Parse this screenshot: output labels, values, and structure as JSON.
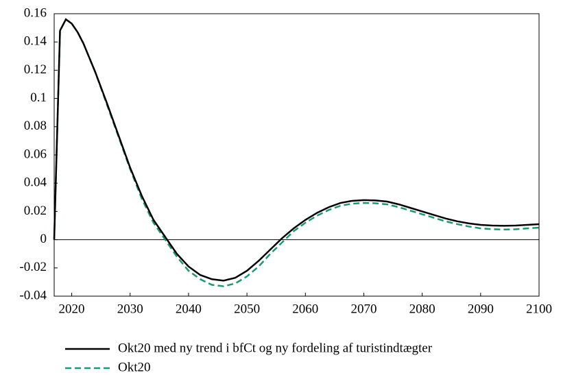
{
  "chart_data": {
    "type": "line",
    "x": [
      2017,
      2018,
      2019,
      2020,
      2021,
      2022,
      2024,
      2026,
      2028,
      2030,
      2032,
      2034,
      2036,
      2038,
      2040,
      2042,
      2044,
      2046,
      2048,
      2050,
      2052,
      2054,
      2056,
      2058,
      2060,
      2062,
      2064,
      2066,
      2068,
      2070,
      2072,
      2074,
      2076,
      2078,
      2080,
      2082,
      2084,
      2086,
      2088,
      2090,
      2092,
      2094,
      2096,
      2098,
      2100
    ],
    "series": [
      {
        "name": "Okt20 med ny trend i bfCt og ny fordeling af turistindtægter",
        "color": "#000000",
        "dash": false,
        "values": [
          0,
          0.148,
          0.156,
          0.153,
          0.147,
          0.139,
          0.119,
          0.097,
          0.074,
          0.051,
          0.031,
          0.014,
          0.002,
          -0.01,
          -0.019,
          -0.025,
          -0.028,
          -0.029,
          -0.027,
          -0.022,
          -0.015,
          -0.007,
          0.001,
          0.008,
          0.014,
          0.019,
          0.023,
          0.026,
          0.0275,
          0.028,
          0.0278,
          0.027,
          0.025,
          0.0225,
          0.02,
          0.0175,
          0.015,
          0.013,
          0.0115,
          0.0105,
          0.01,
          0.0098,
          0.01,
          0.0105,
          0.011
        ]
      },
      {
        "name": "Okt20",
        "color": "#1a9a6c",
        "dash": true,
        "values": [
          0,
          0.148,
          0.156,
          0.153,
          0.147,
          0.139,
          0.119,
          0.096,
          0.073,
          0.05,
          0.029,
          0.012,
          0.0,
          -0.012,
          -0.022,
          -0.028,
          -0.032,
          -0.033,
          -0.031,
          -0.026,
          -0.019,
          -0.01,
          -0.002,
          0.006,
          0.012,
          0.017,
          0.021,
          0.024,
          0.0255,
          0.026,
          0.0258,
          0.025,
          0.023,
          0.0205,
          0.018,
          0.0155,
          0.013,
          0.011,
          0.0093,
          0.008,
          0.0074,
          0.0072,
          0.0074,
          0.008,
          0.0085
        ]
      }
    ],
    "xlim": [
      2017,
      2100
    ],
    "xticks": [
      2020,
      2030,
      2040,
      2050,
      2060,
      2070,
      2080,
      2090,
      2100
    ],
    "ylim": [
      -0.04,
      0.16
    ],
    "yticks": [
      -0.04,
      -0.02,
      0,
      0.02,
      0.04,
      0.06,
      0.08,
      0.1,
      0.12,
      0.14,
      0.16
    ],
    "grid": false,
    "legend": "bottom"
  }
}
